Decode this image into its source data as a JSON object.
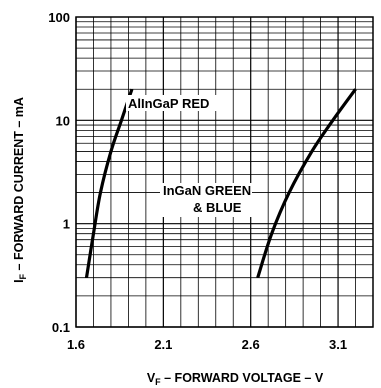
{
  "chart_data": {
    "type": "line",
    "title": "",
    "xlabel_main": "V",
    "xlabel_sub": "F",
    "xlabel_rest": " – FORWARD VOLTAGE – V",
    "ylabel_main": "I",
    "ylabel_sub": "F",
    "ylabel_rest": " – FORWARD CURRENT – mA",
    "xlim": [
      1.6,
      3.3
    ],
    "ylim": [
      0.1,
      100
    ],
    "yscale": "log",
    "xticks": [
      "1.6",
      "2.1",
      "2.6",
      "3.1"
    ],
    "yticks": [
      "100",
      "10",
      "1",
      "0.1"
    ],
    "grid": true,
    "series": [
      {
        "name": "AlInGaP RED",
        "x": [
          1.66,
          1.7,
          1.74,
          1.8,
          1.86,
          1.92
        ],
        "y": [
          0.3,
          0.8,
          2,
          5,
          10,
          20
        ]
      },
      {
        "name_line1": "InGaN GREEN",
        "name_line2": "& BLUE",
        "x": [
          2.64,
          2.72,
          2.82,
          2.95,
          3.07,
          3.2
        ],
        "y": [
          0.3,
          0.8,
          2,
          5,
          10,
          20
        ]
      }
    ]
  }
}
